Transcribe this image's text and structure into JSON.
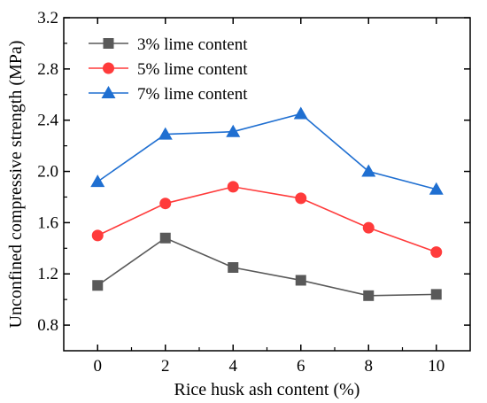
{
  "chart_data": {
    "type": "line",
    "xlabel": "Rice husk ash content (%)",
    "ylabel": "Unconfined compressive strength (MPa)",
    "x": [
      0,
      2,
      4,
      6,
      8,
      10
    ],
    "xlim": [
      -1,
      11
    ],
    "ylim": [
      0.6,
      3.2
    ],
    "xticks": [
      "0",
      "2",
      "4",
      "6",
      "8",
      "10"
    ],
    "yticks": [
      "0.8",
      "1.2",
      "1.6",
      "2.0",
      "2.4",
      "2.8",
      "3.2"
    ],
    "grid": false,
    "legend_position": "top-left",
    "series": [
      {
        "name": "3% lime content",
        "marker": "square",
        "color": "#595959",
        "values": [
          1.11,
          1.48,
          1.25,
          1.15,
          1.03,
          1.04
        ]
      },
      {
        "name": "5% lime content",
        "marker": "circle",
        "color": "#ff3b3b",
        "values": [
          1.5,
          1.75,
          1.88,
          1.79,
          1.56,
          1.37
        ]
      },
      {
        "name": "7% lime content",
        "marker": "triangle",
        "color": "#1f6fd1",
        "values": [
          1.92,
          2.29,
          2.31,
          2.45,
          2.0,
          1.86
        ]
      }
    ]
  }
}
